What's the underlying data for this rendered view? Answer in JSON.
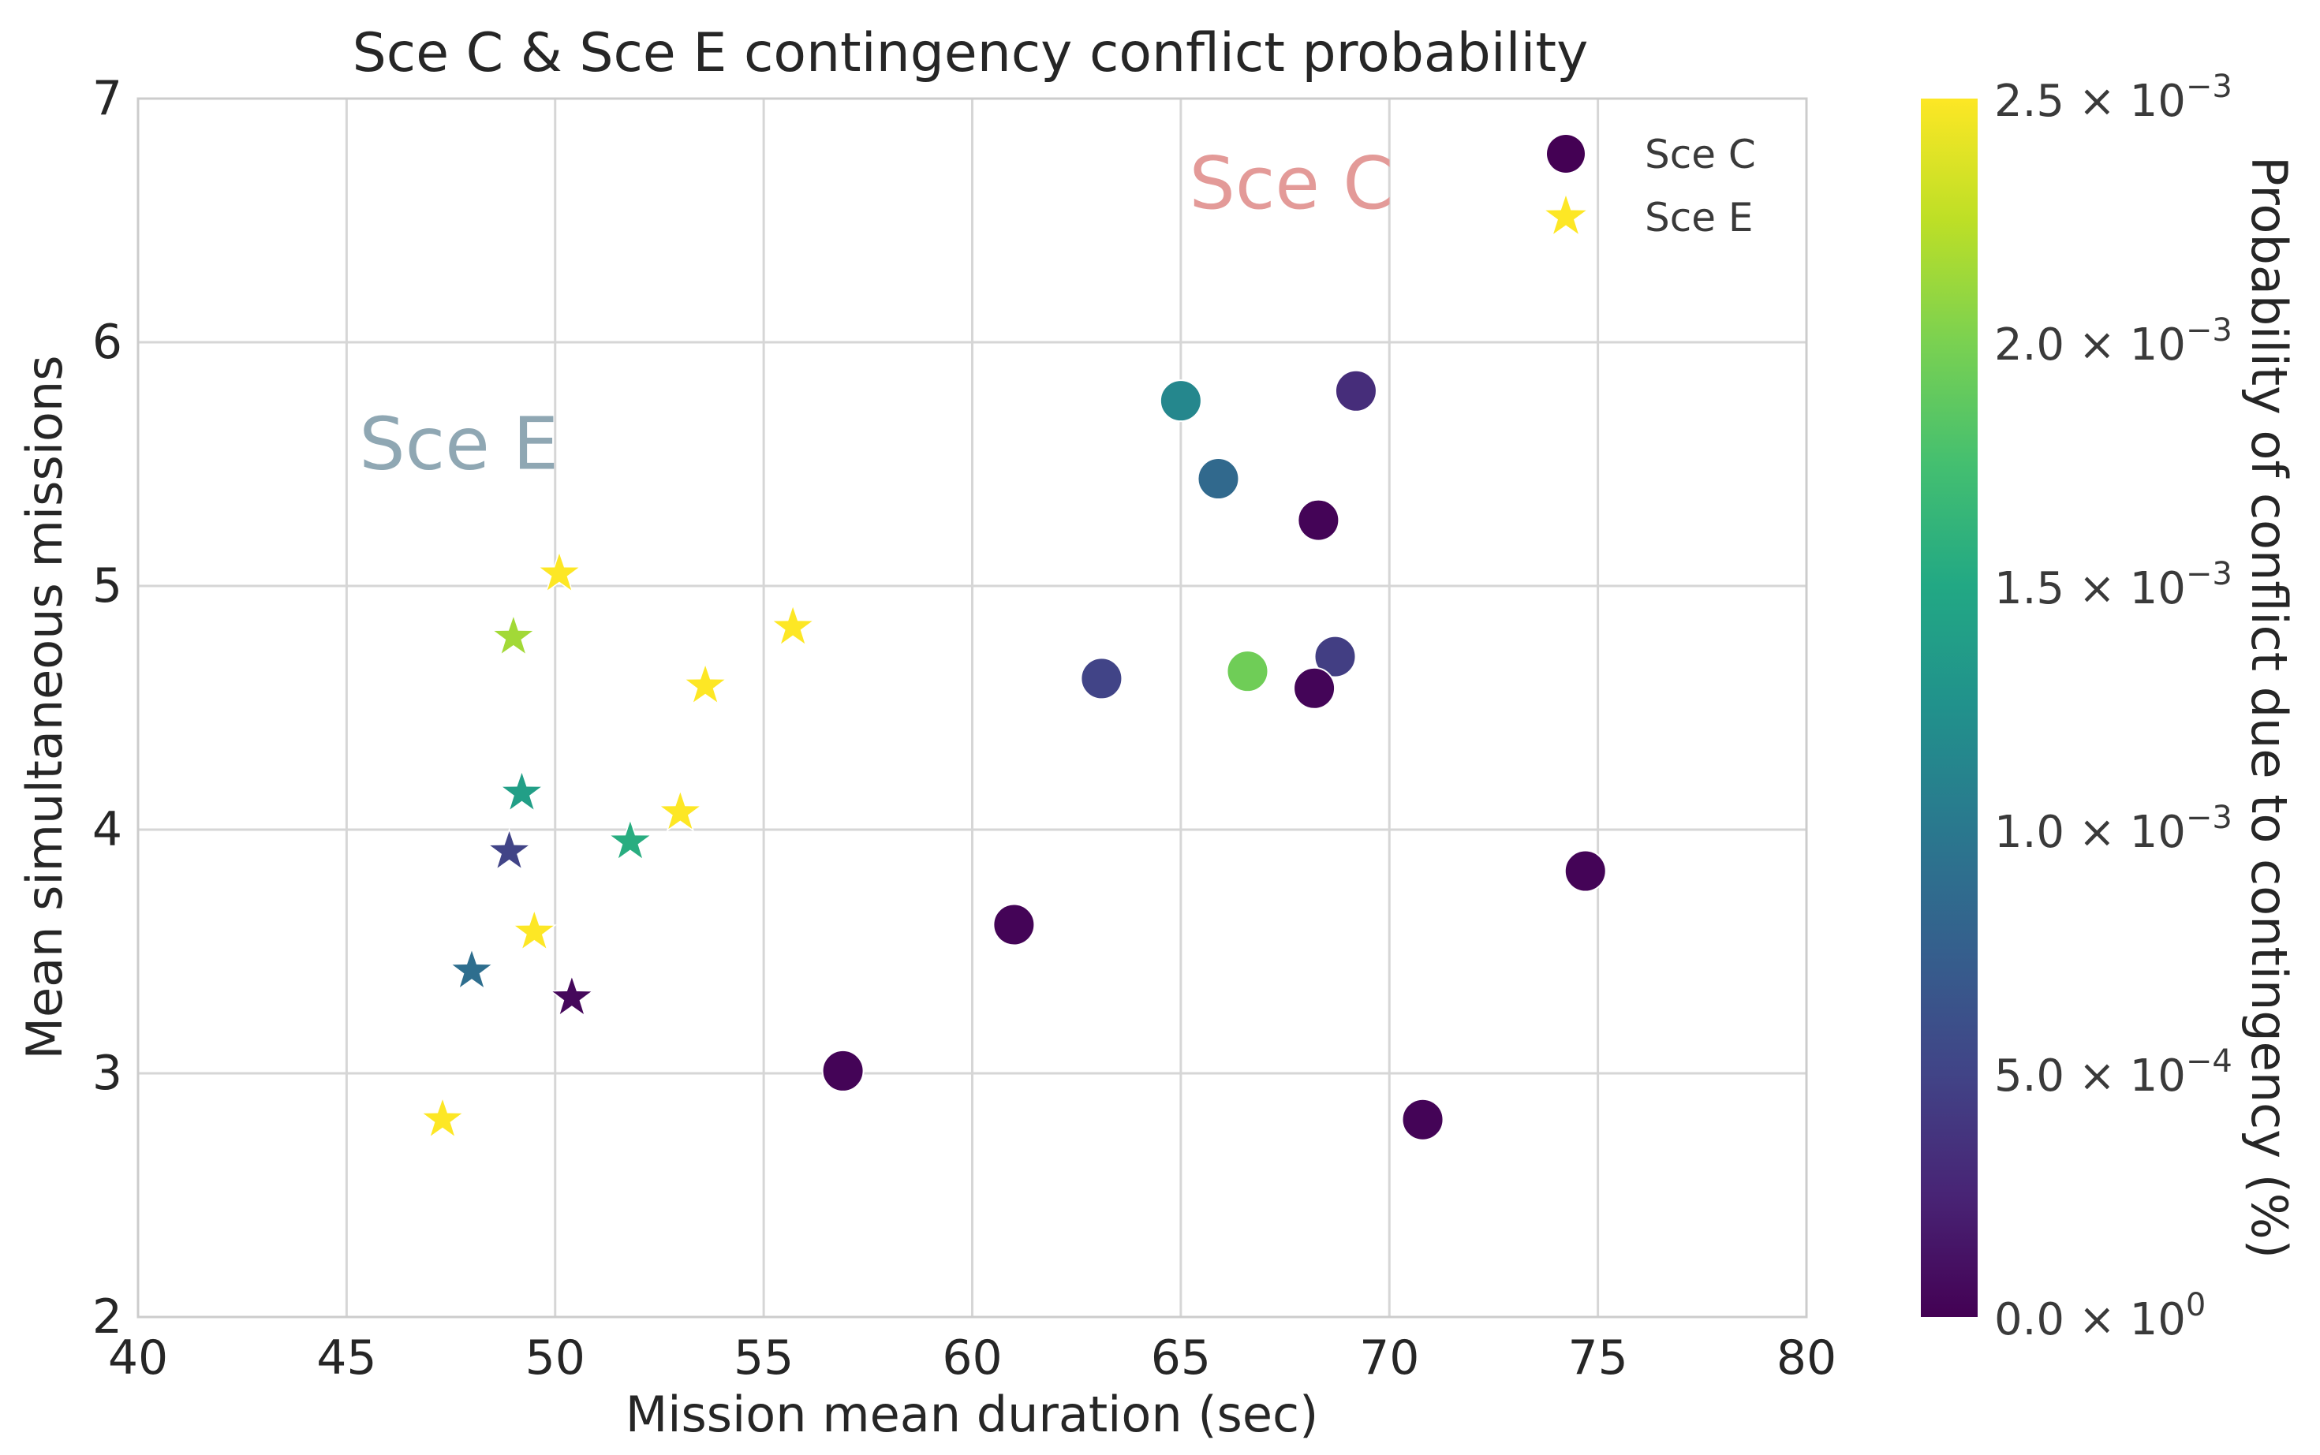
{
  "chart_data": {
    "type": "scatter",
    "title": "Sce C & Sce E contingency conflict probability",
    "xlabel": "Mission mean duration (sec)",
    "ylabel": "Mean simultaneous missions",
    "xlim": [
      40,
      80
    ],
    "ylim": [
      2,
      7
    ],
    "xticks": [
      "40",
      "45",
      "50",
      "55",
      "60",
      "65",
      "70",
      "75",
      "80"
    ],
    "yticks": [
      "2",
      "3",
      "4",
      "5",
      "6",
      "7"
    ],
    "grid": true,
    "legend_position": "top-right",
    "colorbar": {
      "label": "Probability of conflict due to contingency (%)",
      "colormap": "viridis",
      "range": [
        0,
        0.0025
      ],
      "ticks": [
        {
          "value": 0.0,
          "mantissa": "0.0",
          "exponent": "0"
        },
        {
          "value": 0.0005,
          "mantissa": "5.0",
          "exponent": "−4"
        },
        {
          "value": 0.001,
          "mantissa": "1.0",
          "exponent": "−3"
        },
        {
          "value": 0.0015,
          "mantissa": "1.5",
          "exponent": "−3"
        },
        {
          "value": 0.002,
          "mantissa": "2.0",
          "exponent": "−3"
        },
        {
          "value": 0.0025,
          "mantissa": "2.5",
          "exponent": "−3"
        }
      ]
    },
    "annotations": [
      {
        "text": "Sce C",
        "x": 65.2,
        "y": 6.55,
        "color": "#e39a98"
      },
      {
        "text": "Sce E",
        "x": 45.3,
        "y": 5.48,
        "color": "#8fa7b3"
      }
    ],
    "series": [
      {
        "name": "Sce C",
        "marker": "circle",
        "legend_color": "#440154",
        "points": [
          {
            "x": 65.0,
            "y": 5.76,
            "c": 0.00115
          },
          {
            "x": 69.2,
            "y": 5.8,
            "c": 0.00032
          },
          {
            "x": 65.9,
            "y": 5.44,
            "c": 0.00085
          },
          {
            "x": 68.3,
            "y": 5.27,
            "c": 2e-05
          },
          {
            "x": 63.1,
            "y": 4.62,
            "c": 0.0005
          },
          {
            "x": 66.6,
            "y": 4.65,
            "c": 0.00195
          },
          {
            "x": 68.7,
            "y": 4.71,
            "c": 0.00045
          },
          {
            "x": 68.2,
            "y": 4.58,
            "c": 3e-05
          },
          {
            "x": 74.7,
            "y": 3.83,
            "c": 2e-05
          },
          {
            "x": 61.0,
            "y": 3.61,
            "c": 2e-05
          },
          {
            "x": 56.9,
            "y": 3.01,
            "c": 2e-05
          },
          {
            "x": 70.8,
            "y": 2.81,
            "c": 2e-05
          }
        ]
      },
      {
        "name": "Sce E",
        "marker": "star",
        "legend_color": "#fde725",
        "points": [
          {
            "x": 50.1,
            "y": 5.05,
            "c": 0.0025
          },
          {
            "x": 49.0,
            "y": 4.79,
            "c": 0.00215
          },
          {
            "x": 55.7,
            "y": 4.83,
            "c": 0.0025
          },
          {
            "x": 53.6,
            "y": 4.59,
            "c": 0.0025
          },
          {
            "x": 49.2,
            "y": 4.15,
            "c": 0.0014
          },
          {
            "x": 53.0,
            "y": 4.07,
            "c": 0.0025
          },
          {
            "x": 51.8,
            "y": 3.95,
            "c": 0.00155
          },
          {
            "x": 48.9,
            "y": 3.91,
            "c": 0.0005
          },
          {
            "x": 49.5,
            "y": 3.58,
            "c": 0.0025
          },
          {
            "x": 48.0,
            "y": 3.42,
            "c": 0.0009
          },
          {
            "x": 50.4,
            "y": 3.31,
            "c": 5e-05
          },
          {
            "x": 47.3,
            "y": 2.81,
            "c": 0.0025
          }
        ]
      }
    ]
  }
}
